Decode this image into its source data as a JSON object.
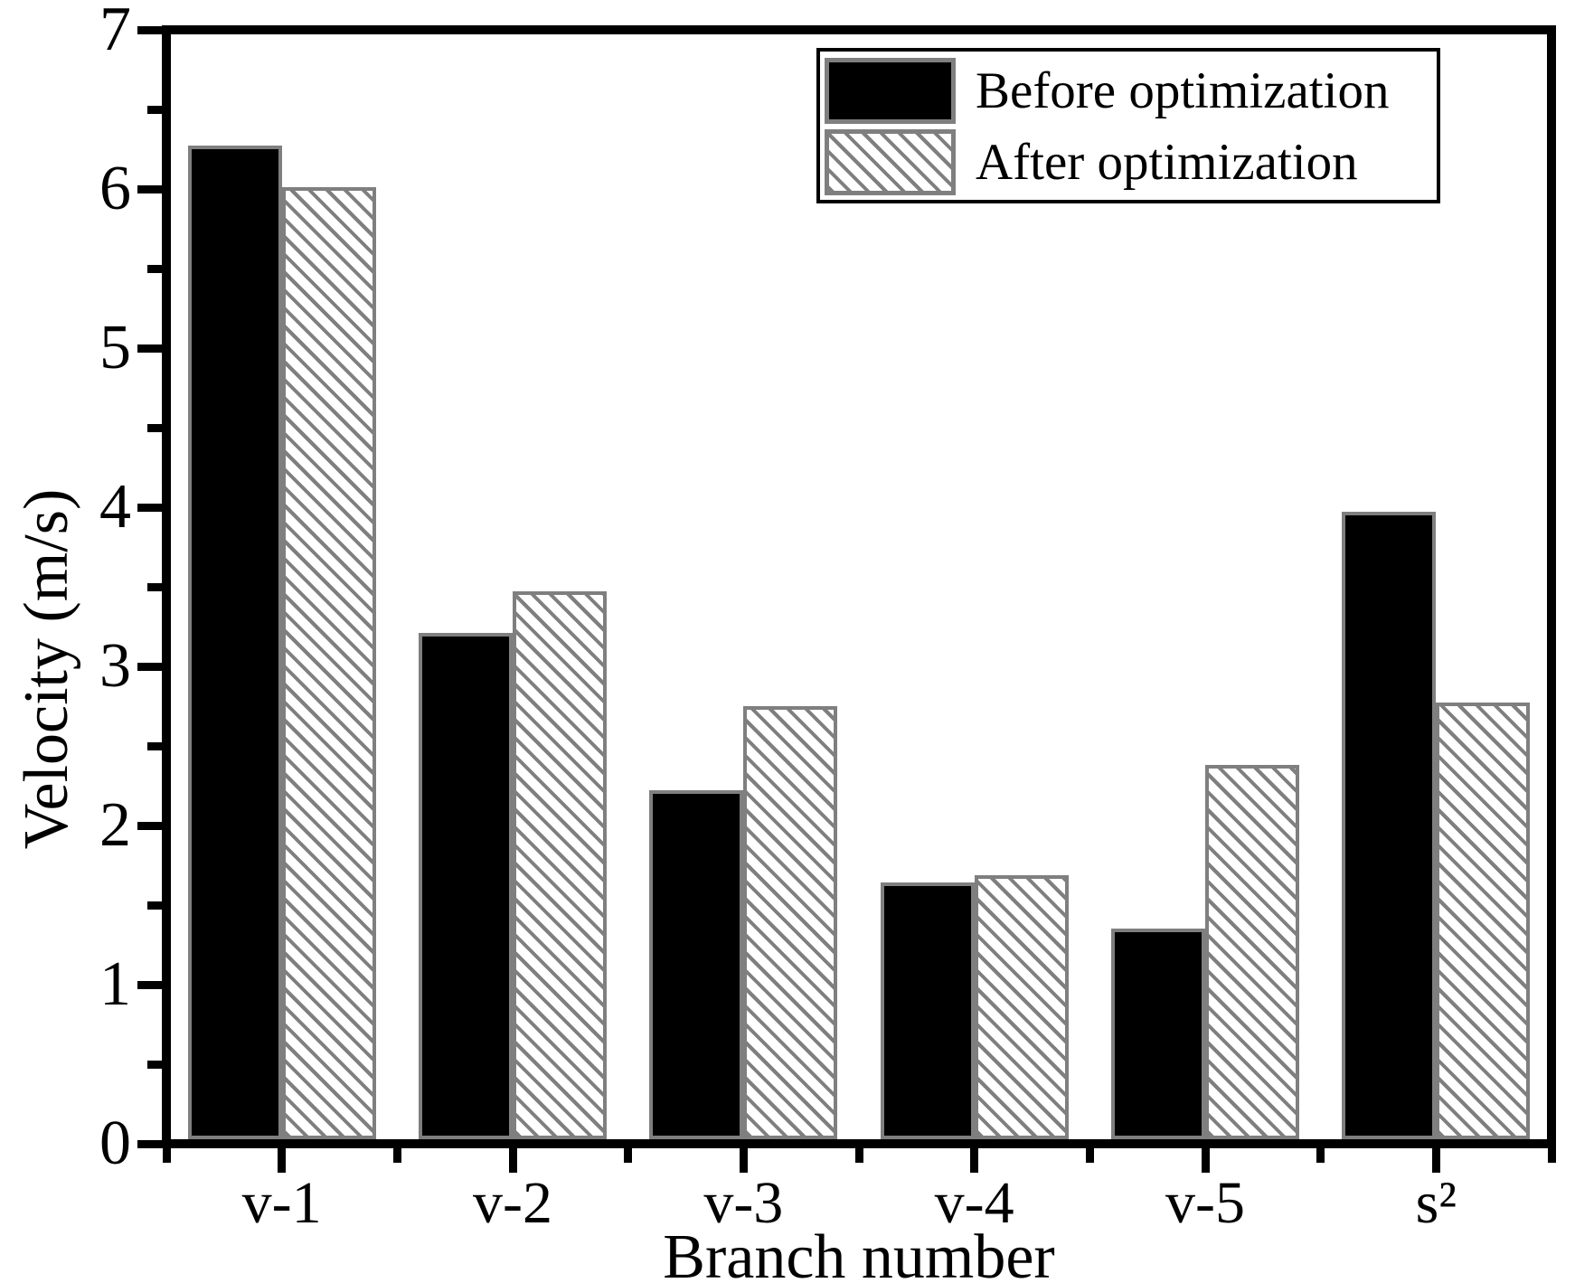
{
  "chart_data": {
    "type": "bar",
    "title": "",
    "categories": [
      "v-1",
      "v-2",
      "v-3",
      "v-4",
      "v-5",
      "s²"
    ],
    "series": [
      {
        "name": "Before optimization",
        "style": "solid-black",
        "values": [
          6.27,
          3.21,
          2.22,
          1.64,
          1.35,
          3.97
        ]
      },
      {
        "name": "After optimization",
        "style": "gray-diagonal-hatch",
        "values": [
          6.01,
          3.47,
          2.75,
          1.69,
          2.38,
          2.77
        ]
      }
    ],
    "xlabel": "Branch number",
    "ylabel": "Velocity (m/s)",
    "ylim": [
      0,
      7
    ],
    "yticks": [
      0,
      1,
      2,
      3,
      4,
      5,
      6,
      7
    ],
    "ytick_minor_step": 0.5,
    "grid": false,
    "legend_position": "top-right-inside"
  },
  "colors": {
    "background": "#ffffff",
    "axis": "#000000",
    "bar_fill_before": "#000000",
    "bar_outline": "#7f7f7f",
    "hatch_line": "#7f7f7f",
    "legend_border": "#000000"
  }
}
